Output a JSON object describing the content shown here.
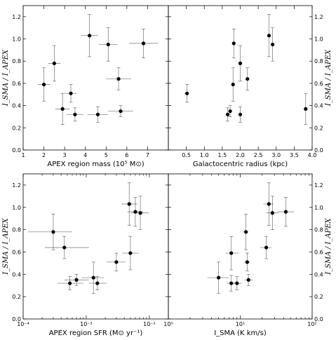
{
  "chart_data": [
    {
      "type": "scatter",
      "xlabel": "APEX region mass (10⁵ M⊙)",
      "ylabel": "I_SMA / I_APEX",
      "xscale": "linear",
      "xlim": [
        1,
        8
      ],
      "ylim": [
        0,
        1.3
      ],
      "xticks": [
        "1",
        "2",
        "3",
        "4",
        "5",
        "6",
        "7"
      ],
      "yticks": [
        "0.0",
        "0.2",
        "0.4",
        "0.6",
        "0.8",
        "1.0",
        "1.2"
      ],
      "ytick_side": "left",
      "points": [
        {
          "x": 2.0,
          "y": 0.59,
          "xerr": 0.3,
          "yerr": 0.15
        },
        {
          "x": 2.5,
          "y": 0.78,
          "xerr": 0.3,
          "yerr": 0.16
        },
        {
          "x": 2.9,
          "y": 0.37,
          "xerr": 0.35,
          "yerr": 0.14
        },
        {
          "x": 3.3,
          "y": 0.51,
          "xerr": 0.3,
          "yerr": 0.08
        },
        {
          "x": 3.5,
          "y": 0.32,
          "xerr": 0.4,
          "yerr": 0.06
        },
        {
          "x": 4.2,
          "y": 1.03,
          "xerr": 0.4,
          "yerr": 0.19
        },
        {
          "x": 4.6,
          "y": 0.32,
          "xerr": 0.5,
          "yerr": 0.07
        },
        {
          "x": 5.1,
          "y": 0.95,
          "xerr": 0.45,
          "yerr": 0.15
        },
        {
          "x": 5.6,
          "y": 0.64,
          "xerr": 0.6,
          "yerr": 0.1
        },
        {
          "x": 5.7,
          "y": 0.35,
          "xerr": 0.6,
          "yerr": 0.05
        },
        {
          "x": 6.8,
          "y": 0.96,
          "xerr": 0.7,
          "yerr": 0.13
        }
      ]
    },
    {
      "type": "scatter",
      "xlabel": "Galactocentric radius (kpc)",
      "ylabel": "I_SMA / I_APEX",
      "xscale": "linear",
      "xlim": [
        0,
        4
      ],
      "ylim": [
        0,
        1.3
      ],
      "xticks": [
        "0.5",
        "1.0",
        "1.5",
        "2.0",
        "2.5",
        "3.0",
        "3.5",
        "4.0"
      ],
      "yticks": [
        "0.0",
        "0.2",
        "0.4",
        "0.6",
        "0.8",
        "1.0",
        "1.2"
      ],
      "ytick_side": "right",
      "points": [
        {
          "x": 0.52,
          "y": 0.51,
          "xerr": 0,
          "yerr": 0.08
        },
        {
          "x": 1.65,
          "y": 0.32,
          "xerr": 0,
          "yerr": 0.06
        },
        {
          "x": 1.72,
          "y": 0.35,
          "xerr": 0,
          "yerr": 0.05
        },
        {
          "x": 1.8,
          "y": 0.59,
          "xerr": 0,
          "yerr": 0.15
        },
        {
          "x": 1.82,
          "y": 0.96,
          "xerr": 0,
          "yerr": 0.13
        },
        {
          "x": 2.0,
          "y": 0.78,
          "xerr": 0,
          "yerr": 0.16
        },
        {
          "x": 2.0,
          "y": 0.32,
          "xerr": 0,
          "yerr": 0.07
        },
        {
          "x": 2.2,
          "y": 0.64,
          "xerr": 0,
          "yerr": 0.1
        },
        {
          "x": 2.8,
          "y": 1.03,
          "xerr": 0,
          "yerr": 0.19
        },
        {
          "x": 2.9,
          "y": 0.95,
          "xerr": 0,
          "yerr": 0.15
        },
        {
          "x": 3.82,
          "y": 0.37,
          "xerr": 0,
          "yerr": 0.14
        }
      ]
    },
    {
      "type": "scatter",
      "xlabel": "APEX region SFR (M⊙ yr⁻¹)",
      "ylabel": "I_SMA / I_APEX",
      "xscale": "log",
      "xlim": [
        0.0001,
        0.02
      ],
      "ylim": [
        0,
        1.3
      ],
      "xticks": [
        "10⁻⁴",
        "10⁻³",
        "10⁻²"
      ],
      "yticks": [
        "0.0",
        "0.2",
        "0.4",
        "0.6",
        "0.8",
        "1.0",
        "1.2"
      ],
      "ytick_side": "left",
      "points": [
        {
          "x": 0.0003,
          "y": 0.78,
          "xlo": 0.00012,
          "xhi": 0.0006,
          "yerr": 0.16
        },
        {
          "x": 0.00045,
          "y": 0.64,
          "xlo": 0.00022,
          "xhi": 0.0011,
          "yerr": 0.1
        },
        {
          "x": 0.00055,
          "y": 0.32,
          "xlo": 0.00035,
          "xhi": 0.0009,
          "yerr": 0.06
        },
        {
          "x": 0.0007,
          "y": 0.35,
          "xlo": 0.00045,
          "xhi": 0.0011,
          "yerr": 0.05
        },
        {
          "x": 0.0013,
          "y": 0.37,
          "xlo": 0.00085,
          "xhi": 0.0019,
          "yerr": 0.14
        },
        {
          "x": 0.0015,
          "y": 0.32,
          "xlo": 0.0011,
          "xhi": 0.0021,
          "yerr": 0.06
        },
        {
          "x": 0.003,
          "y": 0.51,
          "xlo": 0.0021,
          "xhi": 0.0042,
          "yerr": 0.08
        },
        {
          "x": 0.0048,
          "y": 1.03,
          "xlo": 0.0036,
          "xhi": 0.0064,
          "yerr": 0.19
        },
        {
          "x": 0.005,
          "y": 0.59,
          "xlo": 0.0037,
          "xhi": 0.0068,
          "yerr": 0.15
        },
        {
          "x": 0.006,
          "y": 0.96,
          "xlo": 0.0045,
          "xhi": 0.008,
          "yerr": 0.13
        },
        {
          "x": 0.0072,
          "y": 0.95,
          "xlo": 0.0052,
          "xhi": 0.0098,
          "yerr": 0.15
        }
      ]
    },
    {
      "type": "scatter",
      "xlabel": "I_SMA (K km/s)",
      "ylabel": "I_SMA / I_APEX",
      "xscale": "log",
      "xlim": [
        1,
        100
      ],
      "ylim": [
        0,
        1.3
      ],
      "xticks": [
        "10⁰",
        "10¹",
        "10²"
      ],
      "yticks": [
        "0.0",
        "0.2",
        "0.4",
        "0.6",
        "0.8",
        "1.0",
        "1.2"
      ],
      "ytick_side": "right",
      "points": [
        {
          "x": 5,
          "y": 0.37,
          "xlo": 3.5,
          "xhi": 7,
          "yerr": 0.14
        },
        {
          "x": 7.5,
          "y": 0.59,
          "xlo": 6.2,
          "xhi": 9.5,
          "yerr": 0.15
        },
        {
          "x": 7.5,
          "y": 0.32,
          "xlo": 6.5,
          "xhi": 8.5,
          "yerr": 0.07
        },
        {
          "x": 9,
          "y": 0.32,
          "xlo": 7.5,
          "xhi": 10.5,
          "yerr": 0.06
        },
        {
          "x": 12,
          "y": 0.78,
          "xlo": 11,
          "xhi": 13,
          "yerr": 0.16
        },
        {
          "x": 12.5,
          "y": 0.51,
          "xlo": 11.5,
          "xhi": 13.5,
          "yerr": 0.08
        },
        {
          "x": 13,
          "y": 0.35,
          "xlo": 11.5,
          "xhi": 15,
          "yerr": 0.05
        },
        {
          "x": 23,
          "y": 0.64,
          "xlo": 19,
          "xhi": 27,
          "yerr": 0.1
        },
        {
          "x": 25,
          "y": 1.03,
          "xlo": 21,
          "xhi": 29,
          "yerr": 0.19
        },
        {
          "x": 28,
          "y": 0.95,
          "xlo": 23,
          "xhi": 34,
          "yerr": 0.15
        },
        {
          "x": 43,
          "y": 0.96,
          "xlo": 33,
          "xhi": 56,
          "yerr": 0.13
        }
      ]
    }
  ]
}
